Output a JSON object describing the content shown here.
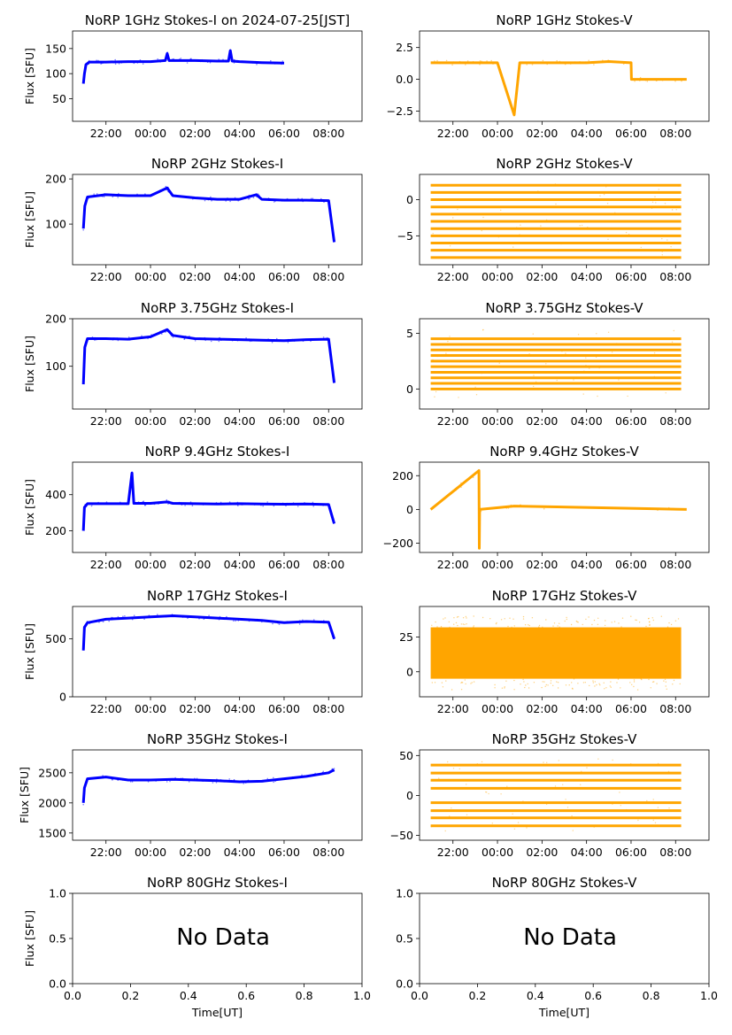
{
  "figure": {
    "time_xlabel": "Time[UT]",
    "time_ticks": [
      "22:00",
      "00:00",
      "02:00",
      "04:00",
      "06:00",
      "08:00"
    ],
    "no_data_text": "No Data",
    "colors": {
      "stokes_i": "#0000ff",
      "stokes_v": "#ffa500"
    }
  },
  "chart_data": [
    {
      "type": "scatter",
      "title": "NoRP 1GHz Stokes-I on 2024-07-25[JST]",
      "ylabel": "Flux [SFU]",
      "xlabel": "",
      "xlim": [
        "20:30",
        "09:30"
      ],
      "ylim": [
        5,
        185
      ],
      "yticks": [
        50,
        100,
        150
      ],
      "ytick_labels": [
        "50",
        "100",
        "150"
      ],
      "series": [
        {
          "color": "#0000ff",
          "points": [
            [
              "20:59",
              80
            ],
            [
              "21:02",
              100
            ],
            [
              "21:06",
              118
            ],
            [
              "21:15",
              123
            ],
            [
              "22:00",
              123
            ],
            [
              "23:00",
              124
            ],
            [
              "00:00",
              124
            ],
            [
              "00:40",
              126
            ],
            [
              "00:45",
              140
            ],
            [
              "00:50",
              126
            ],
            [
              "01:30",
              126
            ],
            [
              "02:00",
              126
            ],
            [
              "03:00",
              125
            ],
            [
              "03:30",
              125
            ],
            [
              "03:35",
              146
            ],
            [
              "03:40",
              125
            ],
            [
              "04:00",
              124
            ],
            [
              "05:00",
              122
            ],
            [
              "06:00",
              121
            ]
          ]
        }
      ]
    },
    {
      "type": "scatter",
      "title": "NoRP 1GHz Stokes-V",
      "ylabel": "",
      "xlabel": "",
      "xlim": [
        "20:30",
        "09:30"
      ],
      "ylim": [
        -3.3,
        3.8
      ],
      "yticks": [
        -2.5,
        0,
        2.5
      ],
      "ytick_labels": [
        "−2.5",
        "0.0",
        "2.5"
      ],
      "series": [
        {
          "color": "#ffa500",
          "points": [
            [
              "21:00",
              1.3
            ],
            [
              "22:00",
              1.3
            ],
            [
              "23:00",
              1.3
            ],
            [
              "00:00",
              1.3
            ],
            [
              "00:45",
              -2.8
            ],
            [
              "01:00",
              1.3
            ],
            [
              "02:00",
              1.3
            ],
            [
              "03:00",
              1.3
            ],
            [
              "04:00",
              1.3
            ],
            [
              "05:00",
              1.4
            ],
            [
              "06:00",
              1.3
            ],
            [
              "06:01",
              0.0
            ],
            [
              "07:00",
              0.0
            ],
            [
              "08:30",
              0.0
            ]
          ]
        }
      ]
    },
    {
      "type": "scatter",
      "title": "NoRP 2GHz Stokes-I",
      "ylabel": "Flux [SFU]",
      "xlabel": "",
      "xlim": [
        "20:30",
        "09:30"
      ],
      "ylim": [
        10,
        210
      ],
      "yticks": [
        100,
        200
      ],
      "ytick_labels": [
        "100",
        "200"
      ],
      "series": [
        {
          "color": "#0000ff",
          "points": [
            [
              "20:59",
              90
            ],
            [
              "21:03",
              140
            ],
            [
              "21:10",
              160
            ],
            [
              "22:00",
              165
            ],
            [
              "23:00",
              163
            ],
            [
              "00:00",
              163
            ],
            [
              "00:45",
              180
            ],
            [
              "01:00",
              163
            ],
            [
              "02:00",
              158
            ],
            [
              "03:00",
              155
            ],
            [
              "04:00",
              155
            ],
            [
              "04:45",
              165
            ],
            [
              "05:00",
              155
            ],
            [
              "06:00",
              153
            ],
            [
              "07:00",
              153
            ],
            [
              "08:00",
              152
            ],
            [
              "08:15",
              60
            ]
          ]
        }
      ]
    },
    {
      "type": "scatter",
      "title": "NoRP 2GHz Stokes-V",
      "ylabel": "",
      "xlabel": "",
      "xlim": [
        "20:30",
        "09:30"
      ],
      "ylim": [
        -9,
        3.5
      ],
      "yticks": [
        -5,
        0
      ],
      "ytick_labels": [
        "−5",
        "0"
      ],
      "series": [
        {
          "color": "#ffa500",
          "levels": [
            2,
            1,
            0,
            -1,
            -2,
            -3,
            -4,
            -5,
            -6,
            -7,
            -8
          ],
          "range": [
            "21:00",
            "08:15"
          ]
        }
      ]
    },
    {
      "type": "scatter",
      "title": "NoRP 3.75GHz Stokes-I",
      "ylabel": "Flux [SFU]",
      "xlabel": "",
      "xlim": [
        "20:30",
        "09:30"
      ],
      "ylim": [
        10,
        200
      ],
      "yticks": [
        100,
        200
      ],
      "ytick_labels": [
        "100",
        "200"
      ],
      "series": [
        {
          "color": "#0000ff",
          "points": [
            [
              "20:59",
              62
            ],
            [
              "21:03",
              140
            ],
            [
              "21:10",
              158
            ],
            [
              "22:00",
              158
            ],
            [
              "23:00",
              157
            ],
            [
              "00:00",
              162
            ],
            [
              "00:45",
              177
            ],
            [
              "01:00",
              165
            ],
            [
              "02:00",
              158
            ],
            [
              "03:00",
              157
            ],
            [
              "04:00",
              156
            ],
            [
              "05:00",
              155
            ],
            [
              "06:00",
              154
            ],
            [
              "07:00",
              156
            ],
            [
              "08:00",
              157
            ],
            [
              "08:15",
              65
            ]
          ]
        }
      ]
    },
    {
      "type": "scatter",
      "title": "NoRP 3.75GHz Stokes-V",
      "ylabel": "",
      "xlabel": "",
      "xlim": [
        "20:30",
        "09:30"
      ],
      "ylim": [
        -1.8,
        6.3
      ],
      "yticks": [
        0,
        5
      ],
      "ytick_labels": [
        "0",
        "5"
      ],
      "series": [
        {
          "color": "#ffa500",
          "levels": [
            4.5,
            4,
            3.5,
            3,
            2.5,
            2,
            1.5,
            1,
            0.5,
            0
          ],
          "range": [
            "21:00",
            "08:15"
          ]
        }
      ]
    },
    {
      "type": "scatter",
      "title": "NoRP 9.4GHz Stokes-I",
      "ylabel": "Flux [SFU]",
      "xlabel": "",
      "xlim": [
        "20:30",
        "09:30"
      ],
      "ylim": [
        80,
        580
      ],
      "yticks": [
        200,
        400
      ],
      "ytick_labels": [
        "200",
        "400"
      ],
      "series": [
        {
          "color": "#0000ff",
          "points": [
            [
              "20:59",
              200
            ],
            [
              "21:02",
              330
            ],
            [
              "21:10",
              350
            ],
            [
              "22:00",
              350
            ],
            [
              "23:00",
              350
            ],
            [
              "23:10",
              520
            ],
            [
              "23:15",
              352
            ],
            [
              "00:00",
              352
            ],
            [
              "00:45",
              360
            ],
            [
              "01:00",
              352
            ],
            [
              "02:00",
              350
            ],
            [
              "03:00",
              348
            ],
            [
              "04:00",
              350
            ],
            [
              "05:00",
              348
            ],
            [
              "06:00",
              347
            ],
            [
              "07:00",
              348
            ],
            [
              "08:00",
              345
            ],
            [
              "08:15",
              240
            ]
          ]
        }
      ]
    },
    {
      "type": "scatter",
      "title": "NoRP 9.4GHz Stokes-V",
      "ylabel": "",
      "xlabel": "",
      "xlim": [
        "20:30",
        "09:30"
      ],
      "ylim": [
        -255,
        280
      ],
      "yticks": [
        -200,
        0,
        200
      ],
      "ytick_labels": [
        "−200",
        "0",
        "200"
      ],
      "series": [
        {
          "color": "#ffa500",
          "points": [
            [
              "21:00",
              0
            ],
            [
              "23:10",
              230
            ],
            [
              "23:11",
              -230
            ],
            [
              "23:12",
              0
            ],
            [
              "00:45",
              20
            ],
            [
              "08:30",
              0
            ]
          ]
        }
      ]
    },
    {
      "type": "scatter",
      "title": "NoRP 17GHz Stokes-I",
      "ylabel": "Flux [SFU]",
      "xlabel": "",
      "xlim": [
        "20:30",
        "09:30"
      ],
      "ylim": [
        0,
        780
      ],
      "yticks": [
        0,
        500
      ],
      "ytick_labels": [
        "0",
        "500"
      ],
      "series": [
        {
          "color": "#0000ff",
          "points": [
            [
              "20:59",
              400
            ],
            [
              "21:02",
              600
            ],
            [
              "21:10",
              640
            ],
            [
              "22:00",
              670
            ],
            [
              "23:00",
              680
            ],
            [
              "00:00",
              690
            ],
            [
              "01:00",
              700
            ],
            [
              "02:00",
              690
            ],
            [
              "03:00",
              680
            ],
            [
              "04:00",
              670
            ],
            [
              "05:00",
              660
            ],
            [
              "06:00",
              640
            ],
            [
              "07:00",
              650
            ],
            [
              "08:00",
              645
            ],
            [
              "08:15",
              500
            ]
          ]
        }
      ]
    },
    {
      "type": "scatter",
      "title": "NoRP 17GHz Stokes-V",
      "ylabel": "",
      "xlabel": "",
      "xlim": [
        "20:30",
        "09:30"
      ],
      "ylim": [
        -18,
        47
      ],
      "yticks": [
        0,
        25
      ],
      "ytick_labels": [
        "0",
        "25"
      ],
      "series": [
        {
          "color": "#ffa500",
          "band": [
            -5,
            32
          ],
          "range": [
            "21:00",
            "08:15"
          ]
        }
      ]
    },
    {
      "type": "scatter",
      "title": "NoRP 35GHz Stokes-I",
      "ylabel": "Flux [SFU]",
      "xlabel": "",
      "xlim": [
        "20:30",
        "09:30"
      ],
      "ylim": [
        1380,
        2880
      ],
      "yticks": [
        1500,
        2000,
        2500
      ],
      "ytick_labels": [
        "1500",
        "2000",
        "2500"
      ],
      "series": [
        {
          "color": "#0000ff",
          "points": [
            [
              "20:59",
              2000
            ],
            [
              "21:02",
              2250
            ],
            [
              "21:10",
              2400
            ],
            [
              "22:00",
              2430
            ],
            [
              "23:00",
              2380
            ],
            [
              "00:00",
              2380
            ],
            [
              "01:00",
              2390
            ],
            [
              "02:00",
              2380
            ],
            [
              "03:00",
              2370
            ],
            [
              "04:00",
              2350
            ],
            [
              "05:00",
              2360
            ],
            [
              "06:00",
              2400
            ],
            [
              "07:00",
              2440
            ],
            [
              "08:00",
              2500
            ],
            [
              "08:15",
              2550
            ]
          ]
        }
      ]
    },
    {
      "type": "scatter",
      "title": "NoRP 35GHz Stokes-V",
      "ylabel": "",
      "xlabel": "",
      "xlim": [
        "20:30",
        "09:30"
      ],
      "ylim": [
        -56,
        57
      ],
      "yticks": [
        -50,
        0,
        50
      ],
      "ytick_labels": [
        "−50",
        "0",
        "50"
      ],
      "series": [
        {
          "color": "#ffa500",
          "levels": [
            38,
            28,
            19,
            9,
            -9,
            -19,
            -28,
            -38
          ],
          "range": [
            "21:00",
            "08:15"
          ]
        }
      ]
    },
    {
      "type": "scatter",
      "title": "NoRP 80GHz Stokes-I",
      "ylabel": "Flux [SFU]",
      "xlabel": "Time[UT]",
      "xlim": [
        0,
        1
      ],
      "ylim": [
        0,
        1
      ],
      "xticks": [
        "0.0",
        "0.2",
        "0.4",
        "0.6",
        "0.8",
        "1.0"
      ],
      "ytick_labels": [
        "0.0",
        "0.5",
        "1.0"
      ],
      "annotation": "No Data",
      "series": []
    },
    {
      "type": "scatter",
      "title": "NoRP 80GHz Stokes-V",
      "ylabel": "",
      "xlabel": "Time[UT]",
      "xlim": [
        0,
        1
      ],
      "ylim": [
        0,
        1
      ],
      "xticks": [
        "0.0",
        "0.2",
        "0.4",
        "0.6",
        "0.8",
        "1.0"
      ],
      "ytick_labels": [
        "0.0",
        "0.5",
        "1.0"
      ],
      "annotation": "No Data",
      "series": []
    }
  ]
}
